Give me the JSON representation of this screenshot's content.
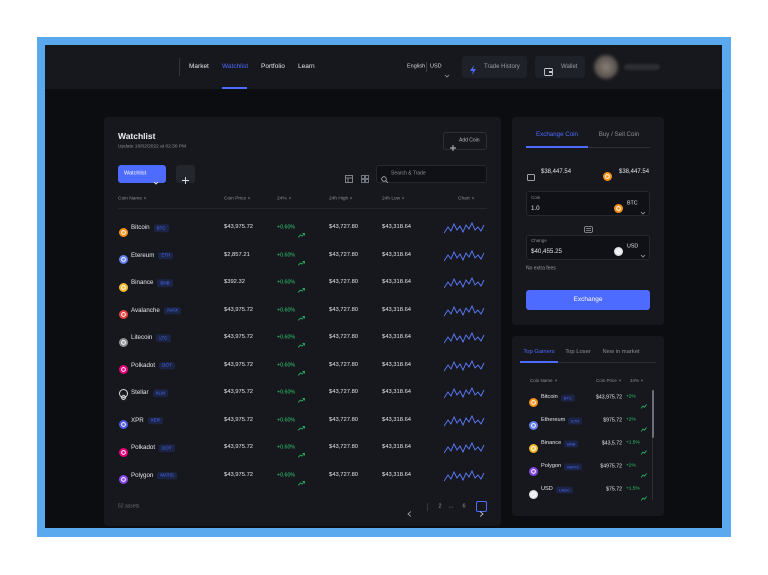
{
  "nav": {
    "links": [
      "Market",
      "Watchlist",
      "Portfolio",
      "Learn"
    ],
    "language": "English",
    "currency": "USD",
    "trade_history": "Trade History",
    "wallet": "Wallet"
  },
  "watchlist": {
    "title": "Watchlist",
    "updated": "Update 16/02/2022 at 02:30 PM",
    "add_coin": "Add Coin",
    "tab": "Watchlist",
    "search": "Search & Trade",
    "columns": [
      "Coin Name",
      "Coin Price",
      "24%",
      "24h High",
      "24h Low",
      "Chart"
    ],
    "rows": [
      [
        "Bitcoin",
        "BTC",
        "$43,975.72",
        "+0.60%",
        "$43,727.80",
        "$43,318.64"
      ],
      [
        "Etereum",
        "ETH",
        "$2,857.21",
        "+0.60%",
        "$43,727.80",
        "$43,318.64"
      ],
      [
        "Binance",
        "BNB",
        "$392.32",
        "+0.60%",
        "$43,727.80",
        "$43,318.64"
      ],
      [
        "Avalanche",
        "AVAX",
        "$43,975.72",
        "+0.60%",
        "$43,727.80",
        "$43,318.64"
      ],
      [
        "Litecoin",
        "LTC",
        "$43,975.72",
        "+0.60%",
        "$43,727.80",
        "$43,318.64"
      ],
      [
        "Polkadot",
        "DOT",
        "$43,975.72",
        "+0.60%",
        "$43,727.80",
        "$43,318.64"
      ],
      [
        "Stellar",
        "XLM",
        "$43,975.72",
        "+0.60%",
        "$43,727.80",
        "$43,318.64"
      ],
      [
        "XPR",
        "XER",
        "$43,975.72",
        "+0.60%",
        "$43,727.80",
        "$43,318.64"
      ],
      [
        "Polkadot",
        "DOT",
        "$43,975.72",
        "+0.60%",
        "$43,727.80",
        "$43,318.64"
      ],
      [
        "Polygon",
        "MATIC",
        "$43,975.72",
        "+0.60%",
        "$43,727.80",
        "$43,318.64"
      ]
    ],
    "assets": "52 assets",
    "pages": [
      "2",
      "...",
      "6"
    ]
  },
  "exchange": {
    "tabs": [
      "Exchange Coin",
      "Buy / Sell Coin"
    ],
    "balance_usd": "$38,447.54",
    "balance_btc": "$38,447.54",
    "coin_label": "Coin",
    "coin_amount": "1.0",
    "coin_currency": "BTC",
    "change_label": "Change",
    "change_amount": "$40,455.25",
    "change_currency": "USD",
    "fees": "No extra fees",
    "button": "Exchange"
  },
  "gainers": {
    "tabs": [
      "Top Gainers",
      "Top Loser",
      "New in market"
    ],
    "columns": [
      "Coin Name",
      "Coin Price",
      "24%"
    ],
    "rows": [
      [
        "Bitcoin",
        "BTC",
        "$43,975.72",
        "+2%"
      ],
      [
        "Ethereum",
        "ETH",
        "$975.72",
        "+2%"
      ],
      [
        "Binance",
        "BNB",
        "$43,5.72",
        "+1.5%"
      ],
      [
        "Polygon",
        "MATIC",
        "$4975.72",
        "+2%"
      ],
      [
        "USD",
        "USDC",
        "$75.72",
        "+1.5%"
      ]
    ]
  }
}
